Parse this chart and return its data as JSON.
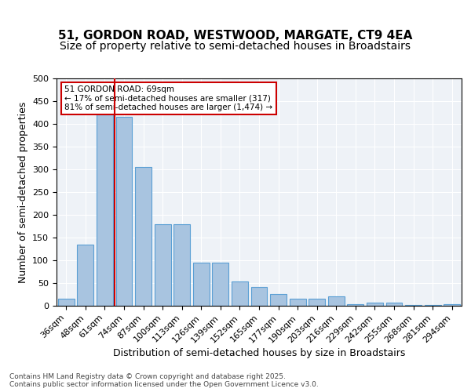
{
  "title": "51, GORDON ROAD, WESTWOOD, MARGATE, CT9 4EA",
  "subtitle": "Size of property relative to semi-detached houses in Broadstairs",
  "xlabel": "Distribution of semi-detached houses by size in Broadstairs",
  "ylabel": "Number of semi-detached properties",
  "categories": [
    "36sqm",
    "48sqm",
    "61sqm",
    "74sqm",
    "87sqm",
    "100sqm",
    "113sqm",
    "126sqm",
    "139sqm",
    "152sqm",
    "165sqm",
    "177sqm",
    "190sqm",
    "203sqm",
    "216sqm",
    "229sqm",
    "242sqm",
    "255sqm",
    "268sqm",
    "281sqm",
    "294sqm"
  ],
  "values": [
    15,
    135,
    420,
    415,
    305,
    180,
    180,
    95,
    95,
    53,
    41,
    26,
    15,
    15,
    20,
    3,
    7,
    7,
    2,
    2,
    4
  ],
  "bar_color": "#a8c4e0",
  "bar_edge_color": "#5a9fd4",
  "property_bin_index": 2,
  "property_label": "51 GORDON ROAD: 69sqm",
  "annotation_line1": "← 17% of semi-detached houses are smaller (317)",
  "annotation_line2": "81% of semi-detached houses are larger (1,474) →",
  "vline_color": "#cc0000",
  "annotation_box_color": "#cc0000",
  "ylim": [
    0,
    500
  ],
  "yticks": [
    0,
    50,
    100,
    150,
    200,
    250,
    300,
    350,
    400,
    450,
    500
  ],
  "footer_line1": "Contains HM Land Registry data © Crown copyright and database right 2025.",
  "footer_line2": "Contains public sector information licensed under the Open Government Licence v3.0.",
  "bg_color": "#eef2f7",
  "title_fontsize": 11,
  "subtitle_fontsize": 10,
  "axis_fontsize": 9,
  "tick_fontsize": 8
}
